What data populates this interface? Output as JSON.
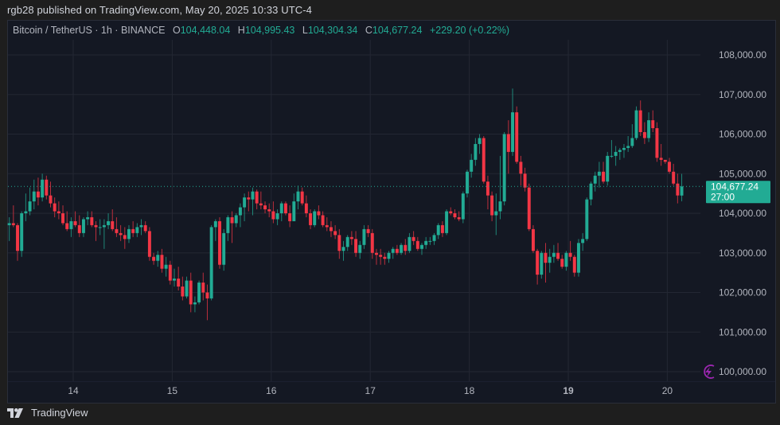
{
  "header": {
    "published_line": "rgb28 published on TradingView.com, May 20, 2025 10:33 UTC-4"
  },
  "legend": {
    "symbol": "Bitcoin / TetherUS · 1h · BINANCE",
    "open_label": "O",
    "open": "104,448.04",
    "high_label": "H",
    "high": "104,995.43",
    "low_label": "L",
    "low": "104,304.34",
    "close_label": "C",
    "close": "104,677.24",
    "change": "+229.20 (+0.22%)"
  },
  "price_tag": {
    "price": "104,677.24",
    "countdown": "27:00"
  },
  "footer": {
    "brand": "TradingView"
  },
  "colors": {
    "up": "#22ab94",
    "down": "#f23645",
    "background": "#141823",
    "grid": "#232733",
    "axis_text": "#b2b5be",
    "price_tag": "#22ab94",
    "alert_icon": "#9c27b0"
  },
  "chart_data": {
    "type": "candlestick",
    "title": "Bitcoin / TetherUS · 1h · BINANCE",
    "xlabel": "",
    "ylabel": "",
    "x_ticks": [
      "14",
      "15",
      "16",
      "17",
      "18",
      "19",
      "20"
    ],
    "y_ticks": [
      "100,000.00",
      "101,000.00",
      "102,000.00",
      "103,000.00",
      "104,000.00",
      "105,000.00",
      "106,000.00",
      "107,000.00",
      "108,000.00"
    ],
    "ylim": [
      99800,
      108600
    ],
    "last_price": 104677.24,
    "grid": true,
    "candles_per_day": 24,
    "first_candle_offset_before_day14": 16,
    "ohlc": [
      [
        103700,
        103900,
        103300,
        103750
      ],
      [
        103750,
        104200,
        103650,
        103700
      ],
      [
        103700,
        103750,
        102800,
        103050
      ],
      [
        103050,
        104050,
        102900,
        104000
      ],
      [
        104000,
        104500,
        103800,
        104050
      ],
      [
        104050,
        104650,
        103950,
        104300
      ],
      [
        104300,
        104850,
        104100,
        104550
      ],
      [
        104550,
        104900,
        104200,
        104400
      ],
      [
        104400,
        105000,
        104300,
        104850
      ],
      [
        104850,
        104950,
        104350,
        104450
      ],
      [
        104450,
        104800,
        104150,
        104250
      ],
      [
        104250,
        104400,
        103900,
        104050
      ],
      [
        104050,
        104300,
        103850,
        104000
      ],
      [
        104000,
        104200,
        103700,
        103750
      ],
      [
        103750,
        104050,
        103550,
        103600
      ],
      [
        103600,
        103900,
        103400,
        103800
      ],
      [
        103800,
        104050,
        103650,
        103700
      ],
      [
        103700,
        103950,
        103400,
        103500
      ],
      [
        103500,
        103900,
        103400,
        103850
      ],
      [
        103850,
        104050,
        103700,
        103900
      ],
      [
        103900,
        104050,
        103650,
        103700
      ],
      [
        103700,
        103800,
        103300,
        103650
      ],
      [
        103650,
        103850,
        103450,
        103650
      ],
      [
        103650,
        103850,
        103100,
        103700
      ],
      [
        103700,
        104000,
        103600,
        103800
      ],
      [
        103800,
        104100,
        103550,
        103600
      ],
      [
        103600,
        103900,
        103400,
        103500
      ],
      [
        103500,
        103700,
        103300,
        103450
      ],
      [
        103450,
        103650,
        103100,
        103350
      ],
      [
        103350,
        103700,
        103250,
        103600
      ],
      [
        103600,
        103800,
        103400,
        103500
      ],
      [
        103500,
        103750,
        103400,
        103650
      ],
      [
        103650,
        103850,
        103450,
        103700
      ],
      [
        103700,
        103800,
        103500,
        103550
      ],
      [
        103550,
        103650,
        102800,
        102900
      ],
      [
        102900,
        103000,
        102700,
        102800
      ],
      [
        102800,
        103050,
        102650,
        102950
      ],
      [
        102950,
        103100,
        102500,
        102600
      ],
      [
        102600,
        102900,
        102400,
        102700
      ],
      [
        102700,
        102800,
        102200,
        102300
      ],
      [
        102300,
        102600,
        102150,
        102350
      ],
      [
        102350,
        102650,
        102050,
        102150
      ],
      [
        102150,
        102400,
        101800,
        101900
      ],
      [
        101900,
        102400,
        101850,
        102300
      ],
      [
        102300,
        102500,
        101500,
        101700
      ],
      [
        101700,
        101900,
        101500,
        101750
      ],
      [
        101750,
        102300,
        101700,
        102250
      ],
      [
        102250,
        102500,
        101800,
        102000
      ],
      [
        102000,
        102200,
        101300,
        101850
      ],
      [
        101850,
        103700,
        101800,
        103650
      ],
      [
        103650,
        103850,
        103300,
        103800
      ],
      [
        103800,
        103900,
        102600,
        102700
      ],
      [
        102700,
        103600,
        102550,
        103500
      ],
      [
        103500,
        103950,
        103300,
        103900
      ],
      [
        103900,
        104050,
        103250,
        103750
      ],
      [
        103750,
        104000,
        103650,
        103950
      ],
      [
        103950,
        104250,
        103650,
        104150
      ],
      [
        104150,
        104500,
        103800,
        104400
      ],
      [
        104400,
        104550,
        104050,
        104350
      ],
      [
        104350,
        104650,
        103950,
        104550
      ],
      [
        104550,
        104600,
        104100,
        104250
      ],
      [
        104250,
        104550,
        104100,
        104200
      ],
      [
        104200,
        104300,
        104000,
        104100
      ],
      [
        104100,
        104250,
        103900,
        104050
      ],
      [
        104050,
        104300,
        103750,
        103850
      ],
      [
        103850,
        104100,
        103700,
        104000
      ],
      [
        104000,
        104300,
        103800,
        104250
      ],
      [
        104250,
        104300,
        103950,
        104000
      ],
      [
        104000,
        104200,
        103650,
        103800
      ],
      [
        103800,
        104500,
        103800,
        104300
      ],
      [
        104300,
        104700,
        104100,
        104550
      ],
      [
        104550,
        104650,
        104200,
        104250
      ],
      [
        104250,
        104450,
        103900,
        104000
      ],
      [
        104000,
        104100,
        103600,
        103700
      ],
      [
        103700,
        104100,
        103650,
        104050
      ],
      [
        104050,
        104200,
        103850,
        103950
      ],
      [
        103950,
        104050,
        103650,
        103700
      ],
      [
        103700,
        103900,
        103550,
        103650
      ],
      [
        103650,
        103800,
        103400,
        103550
      ],
      [
        103550,
        103700,
        103350,
        103450
      ],
      [
        103450,
        103600,
        102850,
        103050
      ],
      [
        103050,
        103300,
        102800,
        103150
      ],
      [
        103150,
        103450,
        103050,
        103400
      ],
      [
        103400,
        103550,
        103200,
        103350
      ],
      [
        103350,
        103550,
        102900,
        103000
      ],
      [
        103000,
        103300,
        102850,
        103200
      ],
      [
        103200,
        103700,
        103100,
        103600
      ],
      [
        103600,
        103700,
        103400,
        103500
      ],
      [
        103500,
        103600,
        102850,
        103000
      ],
      [
        103000,
        103100,
        102700,
        102950
      ],
      [
        102950,
        103100,
        102700,
        102900
      ],
      [
        102900,
        103000,
        102700,
        102850
      ],
      [
        102850,
        103050,
        102750,
        103000
      ],
      [
        103000,
        103150,
        102850,
        103100
      ],
      [
        103100,
        103200,
        102950,
        103000
      ],
      [
        103000,
        103250,
        102950,
        103200
      ],
      [
        103200,
        103350,
        102950,
        103050
      ],
      [
        103050,
        103500,
        103000,
        103400
      ],
      [
        103400,
        103550,
        103200,
        103300
      ],
      [
        103300,
        103400,
        103050,
        103100
      ],
      [
        103100,
        103250,
        102950,
        103200
      ],
      [
        103200,
        103400,
        103100,
        103300
      ],
      [
        103300,
        103400,
        103200,
        103300
      ],
      [
        103300,
        103500,
        103200,
        103450
      ],
      [
        103450,
        103750,
        103350,
        103700
      ],
      [
        103700,
        103800,
        103400,
        103500
      ],
      [
        103500,
        104100,
        103450,
        104050
      ],
      [
        104050,
        104150,
        103950,
        104000
      ],
      [
        104000,
        104100,
        103850,
        103900
      ],
      [
        103900,
        104050,
        103800,
        103850
      ],
      [
        103850,
        104550,
        103750,
        104500
      ],
      [
        104500,
        105100,
        104400,
        105050
      ],
      [
        105050,
        105500,
        104900,
        105350
      ],
      [
        105350,
        105900,
        105200,
        105750
      ],
      [
        105750,
        106000,
        105500,
        105900
      ],
      [
        105900,
        105950,
        104750,
        104800
      ],
      [
        104800,
        104950,
        104100,
        104450
      ],
      [
        104450,
        104550,
        103800,
        103950
      ],
      [
        103950,
        104500,
        103450,
        104050
      ],
      [
        104050,
        105450,
        103850,
        104300
      ],
      [
        104300,
        106050,
        104200,
        106000
      ],
      [
        106000,
        106350,
        105000,
        105550
      ],
      [
        105550,
        107150,
        105450,
        106550
      ],
      [
        106550,
        106700,
        105250,
        105300
      ],
      [
        105300,
        105450,
        104700,
        105000
      ],
      [
        105000,
        105150,
        104550,
        104650
      ],
      [
        104650,
        104750,
        103550,
        103600
      ],
      [
        103600,
        103700,
        103000,
        103050
      ],
      [
        103050,
        103100,
        102200,
        102450
      ],
      [
        102450,
        103050,
        102350,
        103000
      ],
      [
        103000,
        103250,
        102250,
        102750
      ],
      [
        102750,
        103100,
        102500,
        102900
      ],
      [
        102900,
        103200,
        102750,
        103000
      ],
      [
        103000,
        103250,
        102800,
        102850
      ],
      [
        102850,
        102950,
        102600,
        102650
      ],
      [
        102650,
        103050,
        102550,
        103000
      ],
      [
        103000,
        103300,
        102800,
        102900
      ],
      [
        102900,
        102950,
        102400,
        102500
      ],
      [
        102500,
        103350,
        102400,
        103250
      ],
      [
        103250,
        103500,
        103050,
        103350
      ],
      [
        103350,
        104400,
        103300,
        104350
      ],
      [
        104350,
        104800,
        104200,
        104750
      ],
      [
        104750,
        105050,
        104550,
        104950
      ],
      [
        104950,
        105300,
        104650,
        105050
      ],
      [
        105050,
        105300,
        104750,
        104800
      ],
      [
        104800,
        105550,
        104700,
        105450
      ],
      [
        105450,
        105850,
        105400,
        105450
      ],
      [
        105450,
        105700,
        105200,
        105550
      ],
      [
        105550,
        105650,
        105350,
        105600
      ],
      [
        105600,
        105750,
        105400,
        105650
      ],
      [
        105650,
        105950,
        105550,
        105700
      ],
      [
        105700,
        106250,
        105650,
        105900
      ],
      [
        105900,
        106700,
        105850,
        106600
      ],
      [
        106600,
        106850,
        105950,
        106050
      ],
      [
        106050,
        106300,
        105750,
        105900
      ],
      [
        105900,
        106550,
        105800,
        106350
      ],
      [
        106350,
        106600,
        106050,
        106150
      ],
      [
        106150,
        106300,
        105300,
        105400
      ],
      [
        105400,
        105750,
        105200,
        105350
      ],
      [
        105350,
        105300,
        105250,
        105300
      ],
      [
        105300,
        105400,
        105000,
        105050
      ],
      [
        105050,
        105250,
        104700,
        104750
      ],
      [
        104750,
        105000,
        104250,
        104450
      ],
      [
        104448.04,
        104995.43,
        104304.34,
        104677.24
      ]
    ]
  }
}
